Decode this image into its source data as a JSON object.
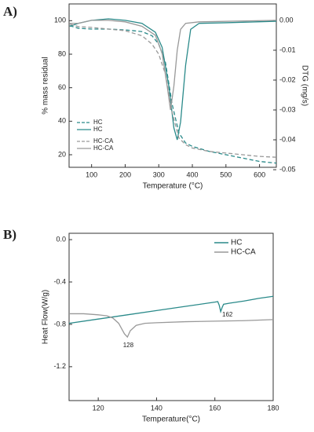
{
  "chart_data": [
    {
      "type": "line",
      "panel_label": "A)",
      "x_label": "Temperature (°C)",
      "y_label": "% mass residual",
      "y2_label": "DTG (mg/s)",
      "xlim": [
        33,
        650
      ],
      "xticks": [
        100,
        200,
        300,
        400,
        500,
        600
      ],
      "ylim": [
        12.5,
        110
      ],
      "yticks": [
        20,
        40,
        60,
        80,
        100
      ],
      "y2lim": [
        -0.0492,
        0.0055
      ],
      "y2ticks": [
        {
          "value": 0,
          "label": "0.00"
        },
        -0.01,
        -0.02,
        -0.03,
        -0.04,
        -0.05
      ],
      "legend": "lower left",
      "series": [
        {
          "name": "HC",
          "color": "#2a8a8a",
          "dash": true,
          "x": [
            35,
            60,
            100,
            150,
            200,
            250,
            280,
            300,
            320,
            340,
            360,
            380,
            400,
            450,
            500,
            550,
            600,
            650
          ],
          "values": [
            97,
            95.5,
            95,
            95,
            94.5,
            93.5,
            91,
            86,
            75,
            50,
            33,
            27,
            25,
            22,
            20,
            18,
            16,
            15
          ]
        },
        {
          "name": "HC",
          "color": "#2a8a8a",
          "dash": false,
          "axis": "y2",
          "x": [
            35,
            60,
            100,
            150,
            200,
            250,
            290,
            310,
            330,
            345,
            355,
            365,
            380,
            395,
            420,
            500,
            650
          ],
          "values": [
            -0.002,
            -0.001,
            0,
            0.0005,
            0,
            -0.001,
            -0.004,
            -0.009,
            -0.022,
            -0.036,
            -0.04,
            -0.034,
            -0.015,
            -0.003,
            -0.001,
            -0.0008,
            -0.0003
          ]
        },
        {
          "name": "HC-CA",
          "color": "#999999",
          "dash": true,
          "x": [
            35,
            60,
            100,
            150,
            200,
            250,
            280,
            300,
            320,
            340,
            360,
            380,
            400,
            450,
            500,
            550,
            600,
            650
          ],
          "values": [
            98,
            96.5,
            96,
            95,
            94,
            91,
            86,
            80,
            68,
            45,
            30,
            26,
            24,
            22,
            21,
            20,
            19,
            18.5
          ]
        },
        {
          "name": "HC-CA",
          "color": "#999999",
          "dash": false,
          "axis": "y2",
          "x": [
            35,
            60,
            100,
            150,
            200,
            250,
            290,
            310,
            325,
            335,
            345,
            355,
            365,
            380,
            420,
            650
          ],
          "values": [
            -0.001,
            -0.001,
            0,
            0,
            -0.0005,
            -0.002,
            -0.005,
            -0.011,
            -0.022,
            -0.03,
            -0.022,
            -0.01,
            -0.003,
            -0.001,
            -0.0005,
            0
          ]
        }
      ]
    },
    {
      "type": "line",
      "panel_label": "B)",
      "x_label": "Temperature(°C)",
      "y_label": "Heat Flow(W/g)",
      "xlim": [
        110,
        180
      ],
      "xticks": [
        120,
        140,
        160,
        180
      ],
      "ylim": [
        -1.52,
        0.06
      ],
      "yticks": [
        {
          "value": 0,
          "label": "0.0"
        },
        -0.4,
        -0.8,
        -1.2
      ],
      "legend": "upper right",
      "series": [
        {
          "name": "HC",
          "color": "#2a8a8a",
          "dash": false,
          "x": [
            110,
            120,
            130,
            140,
            150,
            160,
            161,
            161.5,
            162,
            162.5,
            163,
            165,
            170,
            175,
            180
          ],
          "values": [
            -0.79,
            -0.75,
            -0.71,
            -0.67,
            -0.63,
            -0.59,
            -0.585,
            -0.62,
            -0.68,
            -0.64,
            -0.61,
            -0.6,
            -0.58,
            -0.555,
            -0.535
          ]
        },
        {
          "name": "HC-CA",
          "color": "#999999",
          "dash": false,
          "x": [
            110,
            115,
            120,
            123,
            125,
            127,
            128,
            129,
            130,
            131,
            133,
            136,
            140,
            150,
            160,
            170,
            180
          ],
          "values": [
            -0.7,
            -0.7,
            -0.71,
            -0.72,
            -0.74,
            -0.79,
            -0.84,
            -0.89,
            -0.92,
            -0.86,
            -0.81,
            -0.79,
            -0.785,
            -0.775,
            -0.77,
            -0.765,
            -0.755
          ]
        }
      ],
      "annotations": [
        {
          "text": "162",
          "x": 162.5,
          "y": -0.71
        },
        {
          "text": "128",
          "x": 128.5,
          "y": -1.0
        }
      ]
    }
  ]
}
